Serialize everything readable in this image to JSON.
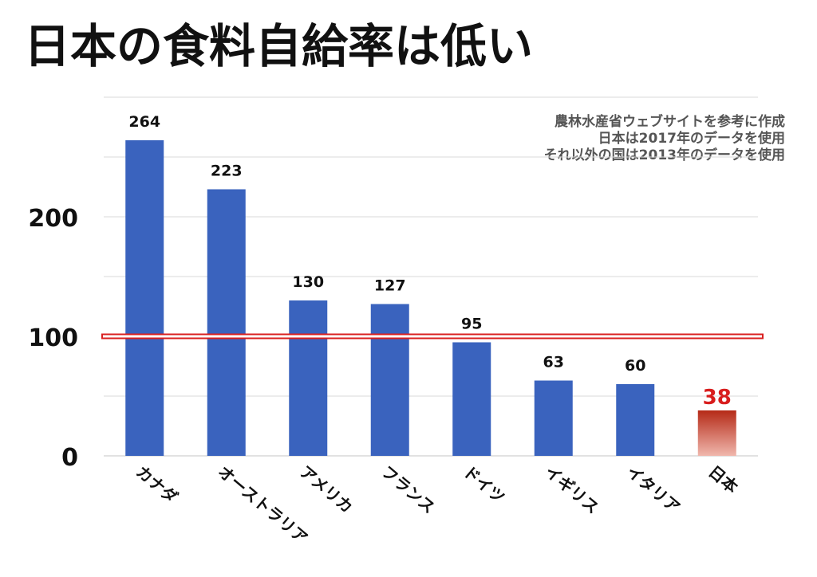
{
  "title": "日本の食料自給率は低い",
  "source_note": {
    "lines": [
      "農林水産省ウェブサイトを参考に作成",
      "日本は2017年のデータを使用",
      "それ以外の国は2013年のデータを使用"
    ]
  },
  "colors": {
    "bar": "#3a63be",
    "highlight_bar_top": "#b52a17",
    "highlight_bar_bottom": "#f0b7ad",
    "highlight_label": "#d81d1d",
    "reference_line": "#d91f1f",
    "grid": "#d9d9d9",
    "axis_text": "#111111"
  },
  "chart_data": {
    "type": "bar",
    "categories": [
      "カナダ",
      "オーストラリア",
      "アメリカ",
      "フランス",
      "ドイツ",
      "イギリス",
      "イタリア",
      "日本"
    ],
    "values": [
      264,
      223,
      130,
      127,
      95,
      63,
      60,
      38
    ],
    "data_labels": [
      "264",
      "223",
      "130",
      "127",
      "95",
      "63",
      "60",
      "38"
    ],
    "highlight_category": "日本",
    "ylim": [
      0,
      300
    ],
    "yticks": [
      0,
      100,
      200
    ],
    "ytick_labels": [
      "0",
      "100",
      "200"
    ],
    "reference_line": 100,
    "gridlines": [
      50,
      100,
      150,
      200,
      250,
      300
    ],
    "grid": true,
    "legend": "none",
    "xlabel": "",
    "ylabel": ""
  }
}
